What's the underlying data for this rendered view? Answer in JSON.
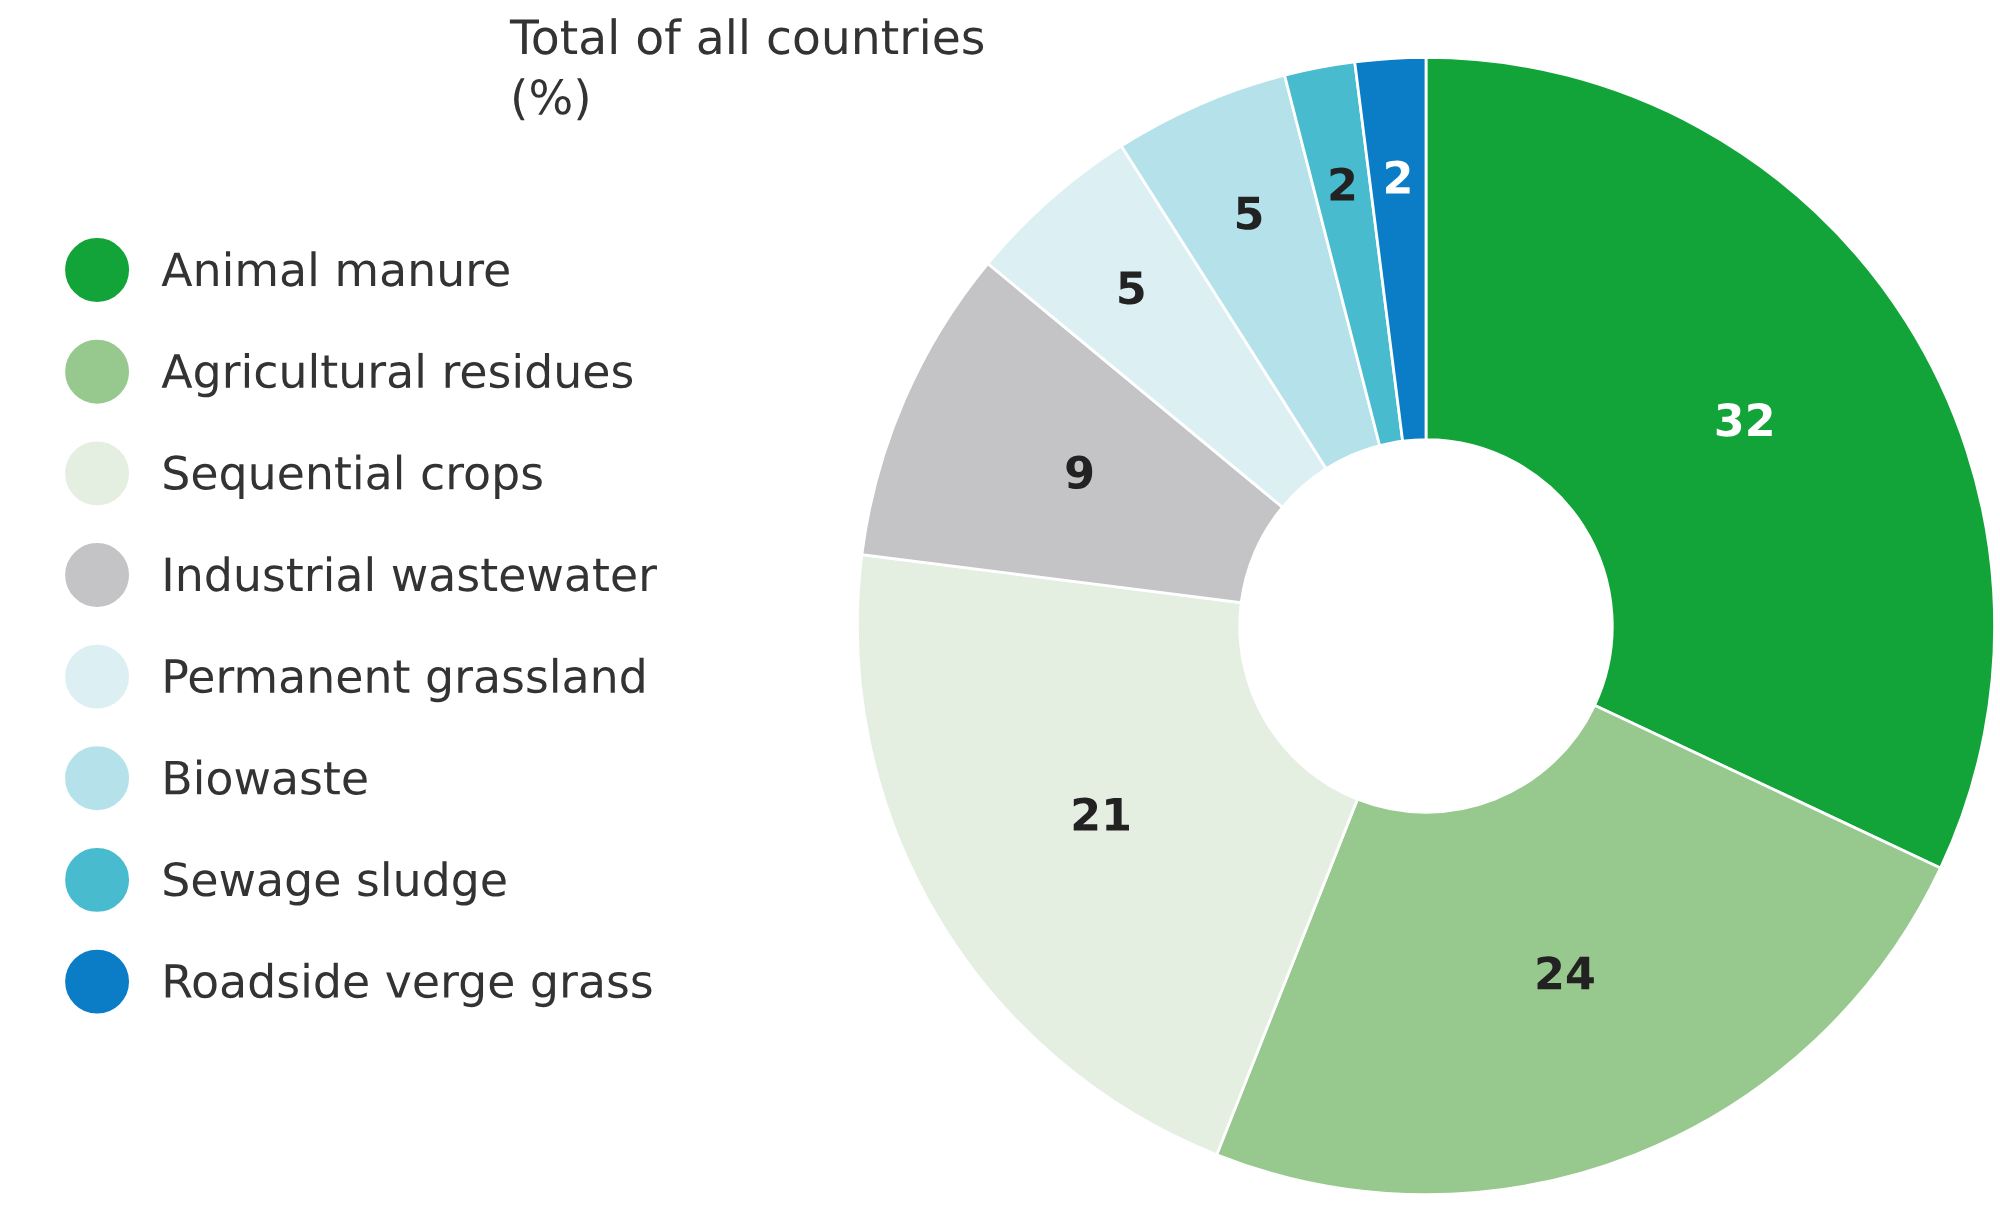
{
  "chart_data": {
    "type": "donut",
    "title": "Total of all countries\n(%)",
    "categories": [
      "Animal manure",
      "Agricultural residues",
      "Sequential crops",
      "Industrial wastewater",
      "Permanent grassland",
      "Biowaste",
      "Sewage sludge",
      "Roadside verge grass"
    ],
    "values": [
      32,
      24,
      21,
      9,
      5,
      5,
      2,
      2
    ],
    "colors": [
      "#12a438",
      "#97c98f",
      "#e4efe1",
      "#c4c4c6",
      "#dcf0f4",
      "#b5e2ea",
      "#48bbcf",
      "#0b7dc7"
    ],
    "data_labels": true,
    "legend": "left"
  }
}
